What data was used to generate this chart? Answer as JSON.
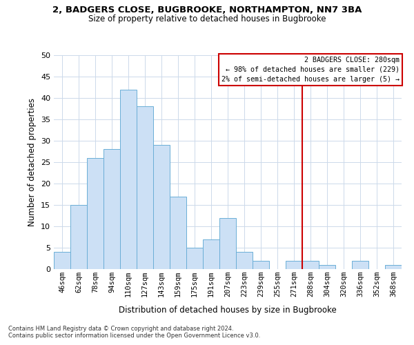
{
  "title": "2, BADGERS CLOSE, BUGBROOKE, NORTHAMPTON, NN7 3BA",
  "subtitle": "Size of property relative to detached houses in Bugbrooke",
  "xlabel": "Distribution of detached houses by size in Bugbrooke",
  "ylabel": "Number of detached properties",
  "bar_labels": [
    "46sqm",
    "62sqm",
    "78sqm",
    "94sqm",
    "110sqm",
    "127sqm",
    "143sqm",
    "159sqm",
    "175sqm",
    "191sqm",
    "207sqm",
    "223sqm",
    "239sqm",
    "255sqm",
    "271sqm",
    "288sqm",
    "304sqm",
    "320sqm",
    "336sqm",
    "352sqm",
    "368sqm"
  ],
  "bar_values": [
    4,
    15,
    26,
    28,
    42,
    38,
    29,
    17,
    5,
    7,
    12,
    4,
    2,
    0,
    2,
    2,
    1,
    0,
    2,
    0,
    1
  ],
  "bar_color": "#cce0f5",
  "bar_edge_color": "#6aaed6",
  "ylim": [
    0,
    50
  ],
  "yticks": [
    0,
    5,
    10,
    15,
    20,
    25,
    30,
    35,
    40,
    45,
    50
  ],
  "vline_color": "#cc0000",
  "vline_x": 14.5,
  "annotation_title": "2 BADGERS CLOSE: 280sqm",
  "annotation_line1": "← 98% of detached houses are smaller (229)",
  "annotation_line2": "2% of semi-detached houses are larger (5) →",
  "annotation_box_color": "#cc0000",
  "footer_line1": "Contains HM Land Registry data © Crown copyright and database right 2024.",
  "footer_line2": "Contains public sector information licensed under the Open Government Licence v3.0.",
  "background_color": "#ffffff",
  "grid_color": "#ccd9ea"
}
